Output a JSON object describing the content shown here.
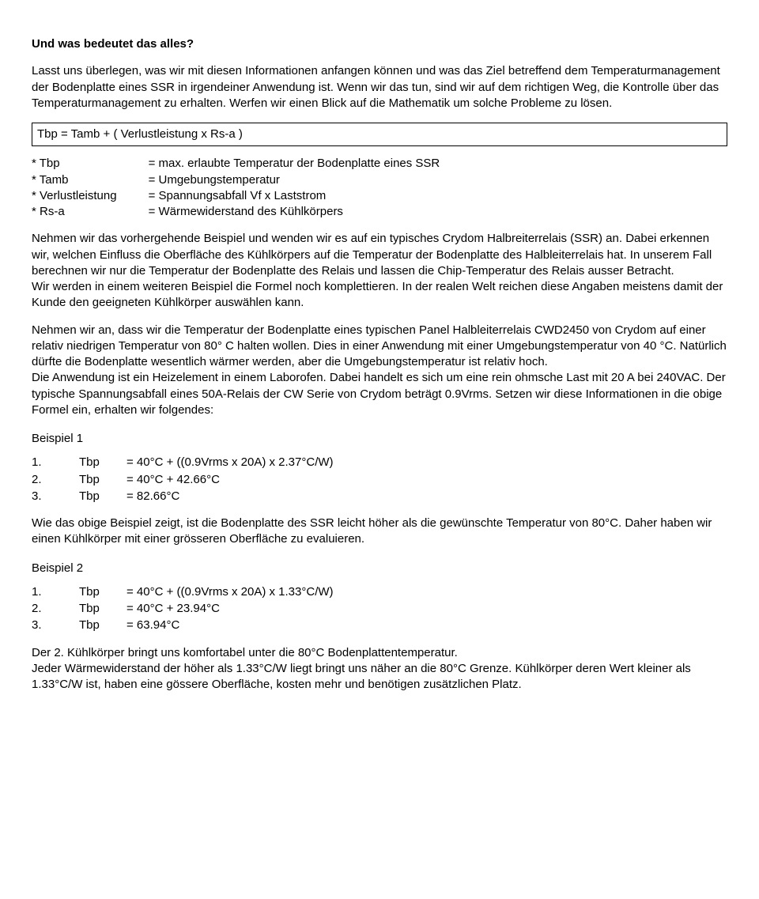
{
  "title": "Und was bedeutet das alles?",
  "intro1": "Lasst uns überlegen, was wir mit diesen Informationen anfangen können und was das Ziel betreffend dem Temperaturmanagement der Bodenplatte eines SSR in irgendeiner Anwendung ist. Wenn wir das tun, sind wir auf dem richtigen Weg, die Kontrolle über das Temperaturmanagement zu erhalten. Werfen wir einen Blick auf die Mathematik um solche Probleme zu lösen.",
  "formula": "Tbp = Tamb + ( Verlustleistung x Rs-a )",
  "defs": [
    {
      "term": "* Tbp",
      "desc": "= max. erlaubte Temperatur der Bodenplatte eines SSR"
    },
    {
      "term": "* Tamb",
      "desc": "= Umgebungstemperatur"
    },
    {
      "term": "* Verlustleistung",
      "desc": "= Spannungsabfall Vf x Laststrom"
    },
    {
      "term": "* Rs-a",
      "desc": "= Wärmewiderstand des Kühlkörpers"
    }
  ],
  "para2": "Nehmen wir das vorhergehende Beispiel und wenden wir es auf ein typisches Crydom Halbreiterrelais (SSR) an. Dabei erkennen wir, welchen Einfluss die Oberfläche des Kühlkörpers auf die Temperatur der Bodenplatte des Halbleiterrelais hat. In unserem Fall berechnen wir nur die Temperatur der Bodenplatte des Relais und lassen die Chip-Temperatur des Relais ausser Betracht.",
  "para2b": "Wir werden in einem weiteren Beispiel die Formel noch komplettieren. In der realen Welt reichen diese Angaben meistens damit der Kunde den geeigneten Kühlkörper auswählen kann.",
  "para3": "Nehmen wir an, dass wir die Temperatur der Bodenplatte eines typischen Panel Halbleiterrelais CWD2450 von Crydom auf einer relativ niedrigen Temperatur von 80° C halten wollen. Dies in einer Anwendung mit einer Umgebungstemperatur von 40 °C. Natürlich dürfte die Bodenplatte wesentlich wärmer werden, aber die Umgebungstemperatur ist relativ hoch.",
  "para3b": "Die Anwendung ist ein Heizelement in einem Laborofen. Dabei handelt es sich um eine rein ohmsche Last mit 20 A bei 240VAC. Der typische Spannungsabfall eines 50A-Relais der CW Serie von Crydom beträgt 0.9Vrms. Setzen wir diese Informationen in die obige Formel ein, erhalten wir folgendes:",
  "ex1title": "Beispiel 1",
  "ex1": [
    {
      "n": "1.",
      "v": "Tbp",
      "r": "= 40°C + ((0.9Vrms x 20A) x 2.37°C/W)"
    },
    {
      "n": "2.",
      "v": "Tbp",
      "r": "= 40°C + 42.66°C"
    },
    {
      "n": "3.",
      "v": "Tbp",
      "r": "= 82.66°C"
    }
  ],
  "para4": "Wie das obige Beispiel zeigt, ist die Bodenplatte des SSR leicht höher als die gewünschte Temperatur von 80°C. Daher haben wir einen Kühlkörper mit einer grösseren Oberfläche zu evaluieren.",
  "ex2title": "Beispiel 2",
  "ex2": [
    {
      "n": "1.",
      "v": "Tbp",
      "r": "= 40°C + ((0.9Vrms x 20A) x 1.33°C/W)"
    },
    {
      "n": "2.",
      "v": "Tbp",
      "r": "= 40°C + 23.94°C"
    },
    {
      "n": "3.",
      "v": "Tbp",
      "r": "= 63.94°C"
    }
  ],
  "para5": "Der 2. Kühlkörper bringt uns komfortabel unter die 80°C Bodenplattentemperatur.",
  "para5b": "Jeder Wärmewiderstand der höher als 1.33°C/W liegt bringt uns näher an die 80°C Grenze. Kühlkörper deren Wert kleiner als 1.33°C/W ist, haben eine gössere Oberfläche, kosten mehr und benötigen zusätzlichen Platz."
}
